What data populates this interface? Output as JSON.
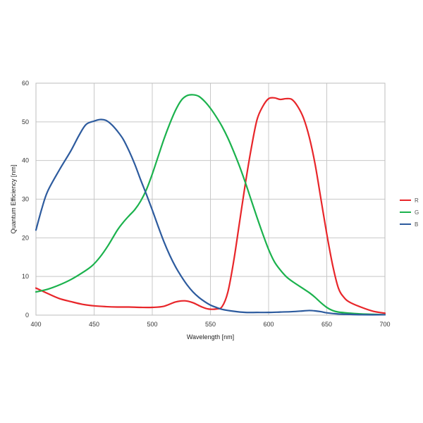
{
  "chart_data": {
    "type": "line",
    "xlabel": "Wavelength [nm]",
    "ylabel": "Quantum Efficiency [nm]",
    "xlim": [
      400,
      700
    ],
    "ylim": [
      0,
      60
    ],
    "x_ticks": [
      400,
      450,
      500,
      550,
      600,
      650,
      700
    ],
    "y_ticks": [
      0,
      10,
      20,
      30,
      40,
      50,
      60
    ],
    "grid": true,
    "legend_position": "right",
    "series": [
      {
        "name": "R",
        "color": "#e8262a",
        "points": [
          [
            400,
            7
          ],
          [
            410,
            5.6
          ],
          [
            420,
            4.3
          ],
          [
            430,
            3.5
          ],
          [
            440,
            2.8
          ],
          [
            450,
            2.4
          ],
          [
            460,
            2.2
          ],
          [
            470,
            2.1
          ],
          [
            480,
            2.1
          ],
          [
            490,
            2
          ],
          [
            500,
            2
          ],
          [
            510,
            2.3
          ],
          [
            520,
            3.4
          ],
          [
            528,
            3.7
          ],
          [
            535,
            3.2
          ],
          [
            542,
            2.2
          ],
          [
            548,
            1.6
          ],
          [
            555,
            1.6
          ],
          [
            560,
            2.2
          ],
          [
            565,
            6
          ],
          [
            570,
            14
          ],
          [
            575,
            24
          ],
          [
            580,
            34
          ],
          [
            585,
            43
          ],
          [
            590,
            50.5
          ],
          [
            595,
            54
          ],
          [
            600,
            56
          ],
          [
            605,
            56.2
          ],
          [
            610,
            55.8
          ],
          [
            615,
            56
          ],
          [
            620,
            55.8
          ],
          [
            625,
            54
          ],
          [
            630,
            51
          ],
          [
            635,
            46
          ],
          [
            640,
            39
          ],
          [
            645,
            30
          ],
          [
            650,
            21
          ],
          [
            655,
            13
          ],
          [
            660,
            7
          ],
          [
            665,
            4.5
          ],
          [
            670,
            3.3
          ],
          [
            680,
            2
          ],
          [
            690,
            1
          ],
          [
            700,
            0.5
          ]
        ]
      },
      {
        "name": "G",
        "color": "#1bb24d",
        "points": [
          [
            400,
            6
          ],
          [
            410,
            6.7
          ],
          [
            420,
            7.8
          ],
          [
            430,
            9.2
          ],
          [
            440,
            11
          ],
          [
            448,
            12.7
          ],
          [
            455,
            15
          ],
          [
            462,
            18
          ],
          [
            470,
            22
          ],
          [
            475,
            24
          ],
          [
            480,
            25.7
          ],
          [
            485,
            27.3
          ],
          [
            490,
            29.5
          ],
          [
            495,
            32.5
          ],
          [
            500,
            36.5
          ],
          [
            505,
            41
          ],
          [
            510,
            45.5
          ],
          [
            515,
            49.5
          ],
          [
            520,
            53
          ],
          [
            525,
            55.6
          ],
          [
            530,
            56.8
          ],
          [
            535,
            57
          ],
          [
            540,
            56.6
          ],
          [
            545,
            55.3
          ],
          [
            550,
            53.5
          ],
          [
            555,
            51.3
          ],
          [
            560,
            48.8
          ],
          [
            565,
            45.8
          ],
          [
            570,
            42.3
          ],
          [
            575,
            38.5
          ],
          [
            580,
            34.3
          ],
          [
            585,
            29.8
          ],
          [
            590,
            25.3
          ],
          [
            595,
            21
          ],
          [
            600,
            17
          ],
          [
            605,
            13.8
          ],
          [
            610,
            11.7
          ],
          [
            615,
            10
          ],
          [
            620,
            8.8
          ],
          [
            630,
            6.8
          ],
          [
            635,
            5.8
          ],
          [
            640,
            4.6
          ],
          [
            645,
            3.2
          ],
          [
            650,
            2
          ],
          [
            655,
            1.2
          ],
          [
            660,
            0.8
          ],
          [
            670,
            0.5
          ],
          [
            680,
            0.3
          ],
          [
            690,
            0.2
          ],
          [
            700,
            0.1
          ]
        ]
      },
      {
        "name": "B",
        "color": "#2d5b9e",
        "points": [
          [
            400,
            22
          ],
          [
            405,
            27.5
          ],
          [
            410,
            32
          ],
          [
            420,
            37.5
          ],
          [
            430,
            42.5
          ],
          [
            437,
            46.5
          ],
          [
            443,
            49.3
          ],
          [
            450,
            50.2
          ],
          [
            455,
            50.6
          ],
          [
            460,
            50.4
          ],
          [
            465,
            49.3
          ],
          [
            470,
            47.6
          ],
          [
            475,
            45.5
          ],
          [
            480,
            42.5
          ],
          [
            485,
            39
          ],
          [
            490,
            35
          ],
          [
            495,
            31.2
          ],
          [
            500,
            27.2
          ],
          [
            505,
            23
          ],
          [
            510,
            19
          ],
          [
            515,
            15.5
          ],
          [
            520,
            12.5
          ],
          [
            525,
            10
          ],
          [
            530,
            7.8
          ],
          [
            535,
            6
          ],
          [
            540,
            4.6
          ],
          [
            545,
            3.5
          ],
          [
            550,
            2.6
          ],
          [
            555,
            2
          ],
          [
            560,
            1.5
          ],
          [
            570,
            1
          ],
          [
            580,
            0.7
          ],
          [
            590,
            0.7
          ],
          [
            600,
            0.7
          ],
          [
            610,
            0.8
          ],
          [
            620,
            0.9
          ],
          [
            630,
            1.1
          ],
          [
            635,
            1.2
          ],
          [
            640,
            1.1
          ],
          [
            645,
            0.9
          ],
          [
            650,
            0.6
          ],
          [
            660,
            0.3
          ],
          [
            670,
            0.2
          ],
          [
            680,
            0.1
          ],
          [
            700,
            0.1
          ]
        ]
      }
    ]
  }
}
